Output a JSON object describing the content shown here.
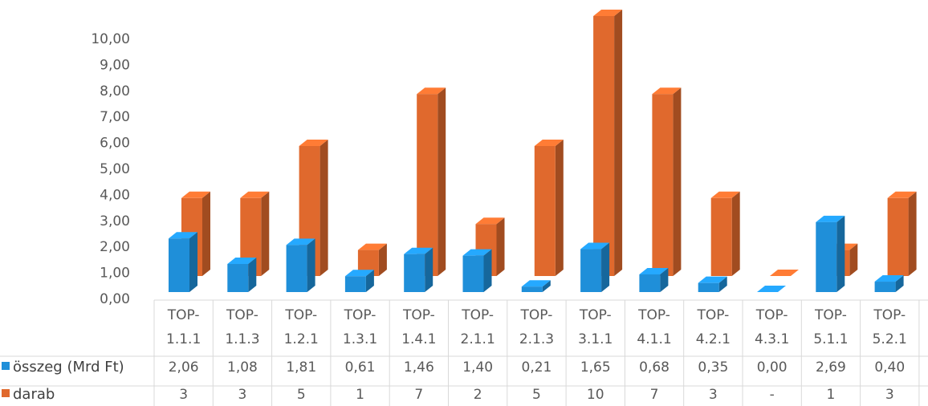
{
  "chart_data": {
    "type": "bar",
    "categories": [
      "TOP-1.1.1",
      "TOP-1.1.3",
      "TOP-1.2.1",
      "TOP-1.3.1",
      "TOP-1.4.1",
      "TOP-2.1.1",
      "TOP-2.1.3",
      "TOP-3.1.1",
      "TOP-4.1.1",
      "TOP-4.2.1",
      "TOP-4.3.1",
      "TOP-5.1.1",
      "TOP-5.2.1"
    ],
    "category_lines": [
      [
        "TOP-",
        "1.1.1"
      ],
      [
        "TOP-",
        "1.1.3"
      ],
      [
        "TOP-",
        "1.2.1"
      ],
      [
        "TOP-",
        "1.3.1"
      ],
      [
        "TOP-",
        "1.4.1"
      ],
      [
        "TOP-",
        "2.1.1"
      ],
      [
        "TOP-",
        "2.1.3"
      ],
      [
        "TOP-",
        "3.1.1"
      ],
      [
        "TOP-",
        "4.1.1"
      ],
      [
        "TOP-",
        "4.2.1"
      ],
      [
        "TOP-",
        "4.3.1"
      ],
      [
        "TOP-",
        "5.1.1"
      ],
      [
        "TOP-",
        "5.2.1"
      ]
    ],
    "series": [
      {
        "name": "összeg (Mrd Ft)",
        "color": "#1f8fd9",
        "values": [
          2.06,
          1.08,
          1.81,
          0.61,
          1.46,
          1.4,
          0.21,
          1.65,
          0.68,
          0.35,
          0.0,
          2.69,
          0.4
        ],
        "labels": [
          "2,06",
          "1,08",
          "1,81",
          "0,61",
          "1,46",
          "1,40",
          "0,21",
          "1,65",
          "0,68",
          "0,35",
          "0,00",
          "2,69",
          "0,40"
        ]
      },
      {
        "name": "darab",
        "color": "#e0692d",
        "values": [
          3,
          3,
          5,
          1,
          7,
          2,
          5,
          10,
          7,
          3,
          0,
          1,
          3
        ],
        "labels": [
          "3",
          "3",
          "5",
          "1",
          "7",
          "2",
          "5",
          "10",
          "7",
          "3",
          "-",
          "1",
          "3"
        ]
      }
    ],
    "ylim": [
      0,
      10
    ],
    "yticks": [
      "0,00",
      "1,00",
      "2,00",
      "3,00",
      "4,00",
      "5,00",
      "6,00",
      "7,00",
      "8,00",
      "9,00",
      "10,00"
    ],
    "title": "",
    "xlabel": "",
    "ylabel": "",
    "grid": false,
    "legend": "data-table-left"
  }
}
